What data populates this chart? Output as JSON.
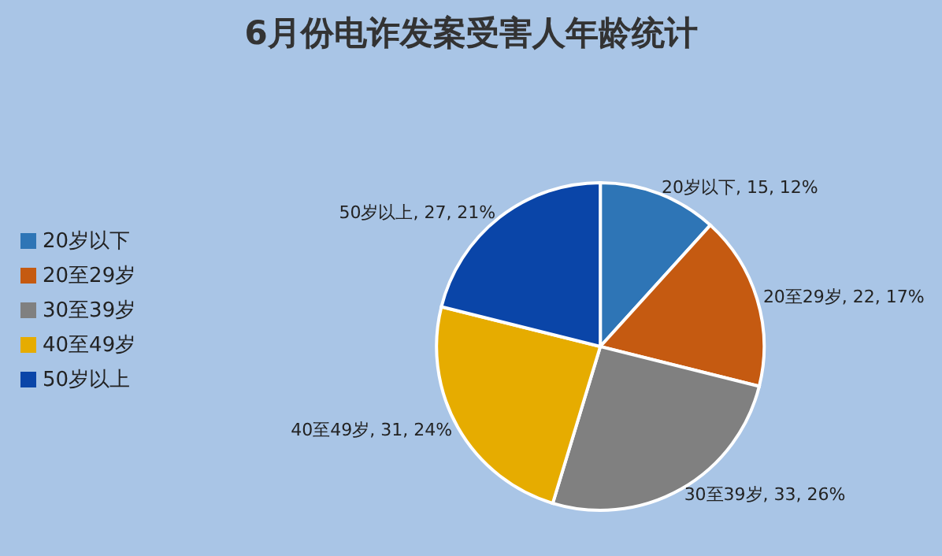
{
  "chart_data": {
    "type": "pie",
    "title": "6月份电诈发案受害人年龄统计",
    "categories": [
      "20岁以下",
      "20至29岁",
      "30至39岁",
      "40至49岁",
      "50岁以上"
    ],
    "values": [
      15,
      22,
      33,
      31,
      27
    ],
    "colors": [
      "#2e75b6",
      "#c55a11",
      "#808080",
      "#e6ac00",
      "#0a45a8"
    ],
    "value_labels": [
      "20岁以下, 15, 12%",
      "20至29岁, 22, 17%",
      "30至39岁, 33, 26%",
      "40至49岁, 31, 24%",
      "50岁以上, 27, 21%"
    ],
    "legend": "left"
  }
}
